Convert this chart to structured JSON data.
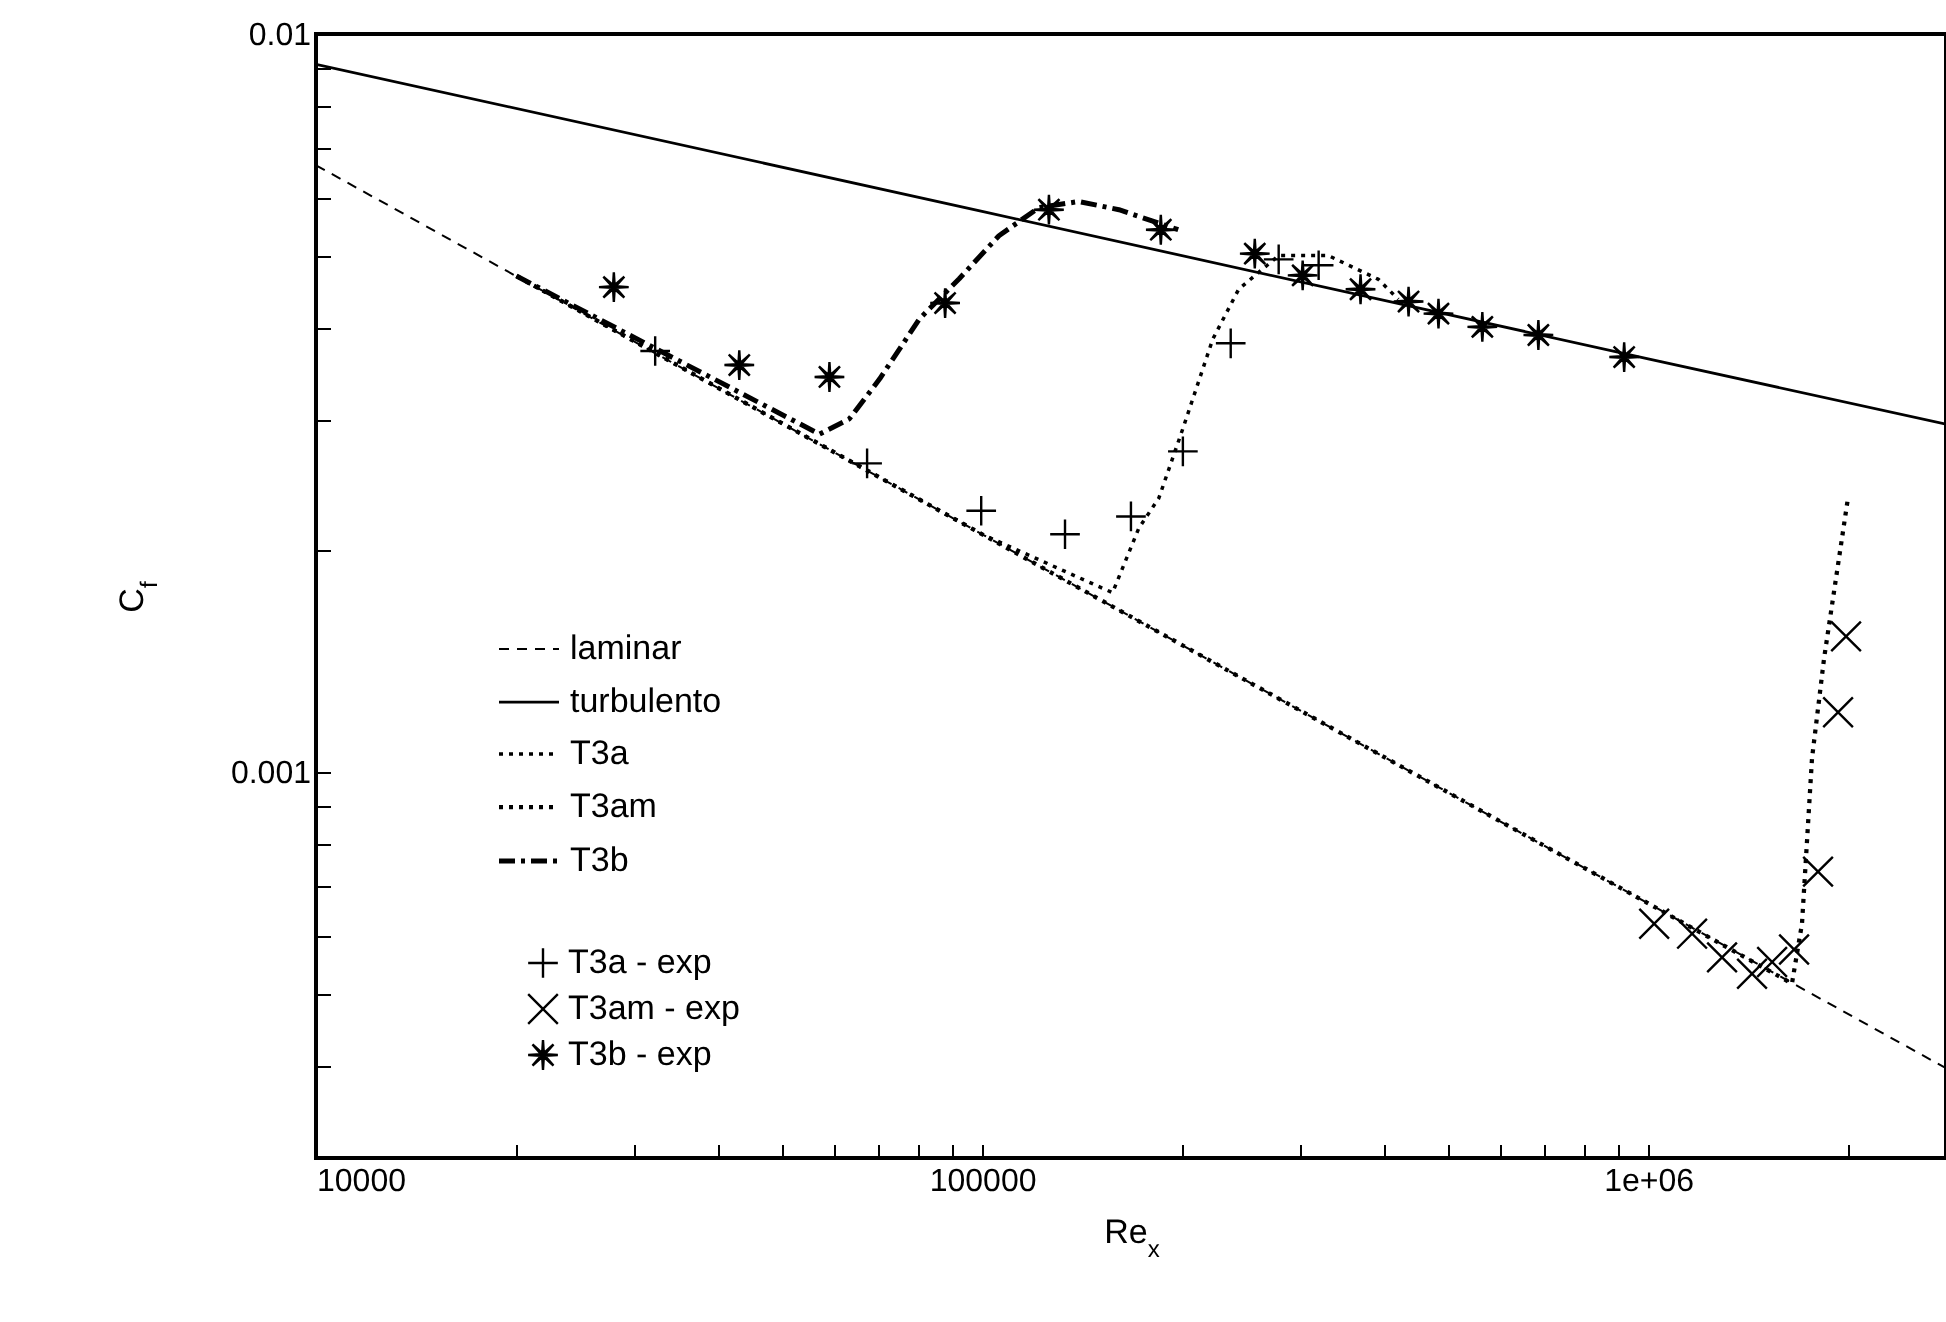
{
  "chart_data": {
    "type": "line",
    "xlabel": "Re$_{x}$",
    "ylabel": "C$_{f}$",
    "log": "xy",
    "legend": "bottom left",
    "xlim": [
      10000,
      2800000
    ],
    "ylim": [
      0.0003,
      0.01
    ],
    "xticks": [
      10000,
      {
        "value": 20000,
        "label": null
      },
      {
        "value": 30000,
        "label": null
      },
      {
        "value": 40000,
        "label": null
      },
      {
        "value": 50000,
        "label": null
      },
      {
        "value": 60000,
        "label": null
      },
      {
        "value": 70000,
        "label": null
      },
      {
        "value": 80000,
        "label": null
      },
      {
        "value": 90000,
        "label": null
      },
      100000,
      {
        "value": 200000,
        "label": null
      },
      {
        "value": 300000,
        "label": null
      },
      {
        "value": 400000,
        "label": null
      },
      {
        "value": 500000,
        "label": null
      },
      {
        "value": 600000,
        "label": null
      },
      {
        "value": 700000,
        "label": null
      },
      {
        "value": 800000,
        "label": null
      },
      {
        "value": 900000,
        "label": null
      },
      {
        "value": 1000000,
        "label": "1e+06"
      },
      {
        "value": 2000000,
        "label": null
      }
    ],
    "yticks": [
      {
        "value": 0.0004,
        "label": null
      },
      {
        "value": 0.0005,
        "label": null
      },
      {
        "value": 0.0006,
        "label": null
      },
      {
        "value": 0.0007,
        "label": null
      },
      {
        "value": 0.0008,
        "label": null
      },
      {
        "value": 0.0009,
        "label": null
      },
      0.001,
      {
        "value": 0.002,
        "label": null
      },
      {
        "value": 0.003,
        "label": null
      },
      {
        "value": 0.004,
        "label": null
      },
      {
        "value": 0.005,
        "label": null
      },
      {
        "value": 0.006,
        "label": null
      },
      {
        "value": 0.007,
        "label": null
      },
      {
        "value": 0.008,
        "label": null
      },
      {
        "value": 0.009,
        "label": null
      },
      0.01
    ],
    "series": [
      {
        "name": "laminar",
        "type": "line",
        "line_style": "dashed",
        "color": "#000000",
        "x": [
          10000,
          100000,
          1000000,
          2800000
        ],
        "values": [
          0.00664,
          0.0021,
          0.000664,
          0.000397
        ]
      },
      {
        "name": "turbulento",
        "type": "line",
        "line_style": "solid",
        "color": "#000000",
        "x": [
          10000,
          100000,
          1000000,
          2800000
        ],
        "values": [
          0.0091,
          0.00575,
          0.00363,
          0.00296
        ]
      },
      {
        "name": "T3a",
        "type": "line",
        "line_style": "dotted",
        "color": "#000000",
        "x": [
          20000,
          100000,
          157000,
          171900,
          184200,
          200200,
          222000,
          242800,
          278800,
          331000,
          393700,
          421700
        ],
        "values": [
          0.0047,
          0.0021,
          0.00175,
          0.00214,
          0.00235,
          0.00292,
          0.00386,
          0.00451,
          0.00501,
          0.00501,
          0.00465,
          0.00437
        ]
      },
      {
        "name": "T3am",
        "type": "line",
        "line_style": "dotted",
        "color": "#000000",
        "x": [
          20000,
          100000,
          1000000,
          1644000,
          1702000,
          1762000,
          1837000,
          1995000
        ],
        "values": [
          0.0047,
          0.0021,
          0.000664,
          0.000517,
          0.000623,
          0.001044,
          0.001426,
          0.00235
        ]
      },
      {
        "name": "T3b",
        "type": "line",
        "line_style": "dashdot",
        "color": "#000000",
        "x": [
          20000,
          57000,
          63200,
          70200,
          80500,
          92400,
          106000,
          121800,
          139700,
          160500,
          197000
        ],
        "values": [
          0.0047,
          0.00287,
          0.00301,
          0.00341,
          0.00411,
          0.00466,
          0.00533,
          0.00582,
          0.00593,
          0.00578,
          0.00543
        ]
      },
      {
        "name": "T3a - exp",
        "type": "scatter",
        "marker": "cross",
        "color": "#000000",
        "x": [
          32300,
          67200,
          99700,
          133200,
          167300,
          200200,
          236200,
          278800,
          320100
        ],
        "values": [
          0.00372,
          0.00262,
          0.00226,
          0.0021,
          0.00222,
          0.00272,
          0.00381,
          0.00495,
          0.00486
        ]
      },
      {
        "name": "T3am - exp",
        "type": "scatter",
        "marker": "x",
        "color": "#000000",
        "x": [
          1021000,
          1164000,
          1291000,
          1432000,
          1535000,
          1656000,
          1799000,
          1928000,
          1982000
        ],
        "values": [
          0.000623,
          0.000604,
          0.000561,
          0.000533,
          0.000553,
          0.000575,
          0.000733,
          0.001205,
          0.001527
        ]
      },
      {
        "name": "T3b - exp",
        "type": "scatter",
        "marker": "star",
        "color": "#000000",
        "x": [
          28000,
          43200,
          59000,
          88000,
          126000,
          185500,
          256700,
          302900,
          370000,
          436800,
          484400,
          563700,
          684200,
          920400
        ],
        "values": [
          0.00454,
          0.00356,
          0.00343,
          0.00432,
          0.00578,
          0.00543,
          0.00504,
          0.00471,
          0.00451,
          0.00434,
          0.00418,
          0.00401,
          0.00391,
          0.00365
        ]
      }
    ]
  }
}
